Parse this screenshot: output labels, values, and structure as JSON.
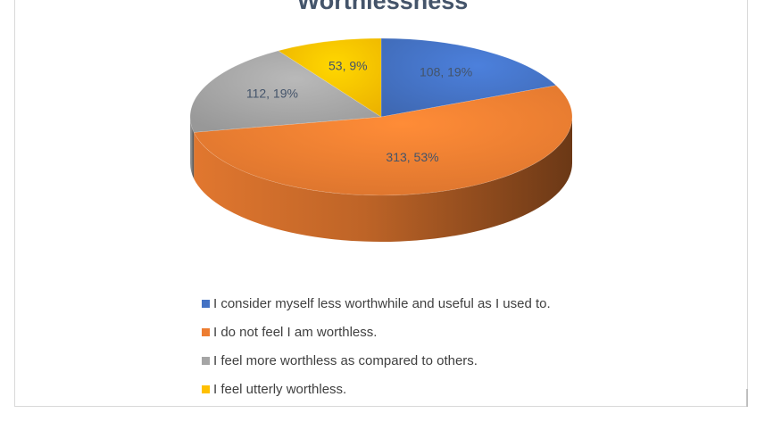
{
  "chart_data": {
    "type": "pie",
    "title": "Worthlessness",
    "three_d": true,
    "series": [
      {
        "name": "I  consider myself less worthwhile and useful as I used to.",
        "value": 108,
        "percent": "19%",
        "label": "108, 19%",
        "color": "#4472c4"
      },
      {
        "name": "I do not feel I am worthless.",
        "value": 313,
        "percent": "53%",
        "label": "313, 53%",
        "color": "#ed7d31"
      },
      {
        "name": "I feel more worthless as compared to others.",
        "value": 112,
        "percent": "19%",
        "label": "112, 19%",
        "color": "#a5a5a5"
      },
      {
        "name": "I feel utterly worthless.",
        "value": 53,
        "percent": "9%",
        "label": "53, 9%",
        "color": "#ffc000"
      }
    ],
    "legend_position": "bottom",
    "label_color": "#44546a"
  }
}
